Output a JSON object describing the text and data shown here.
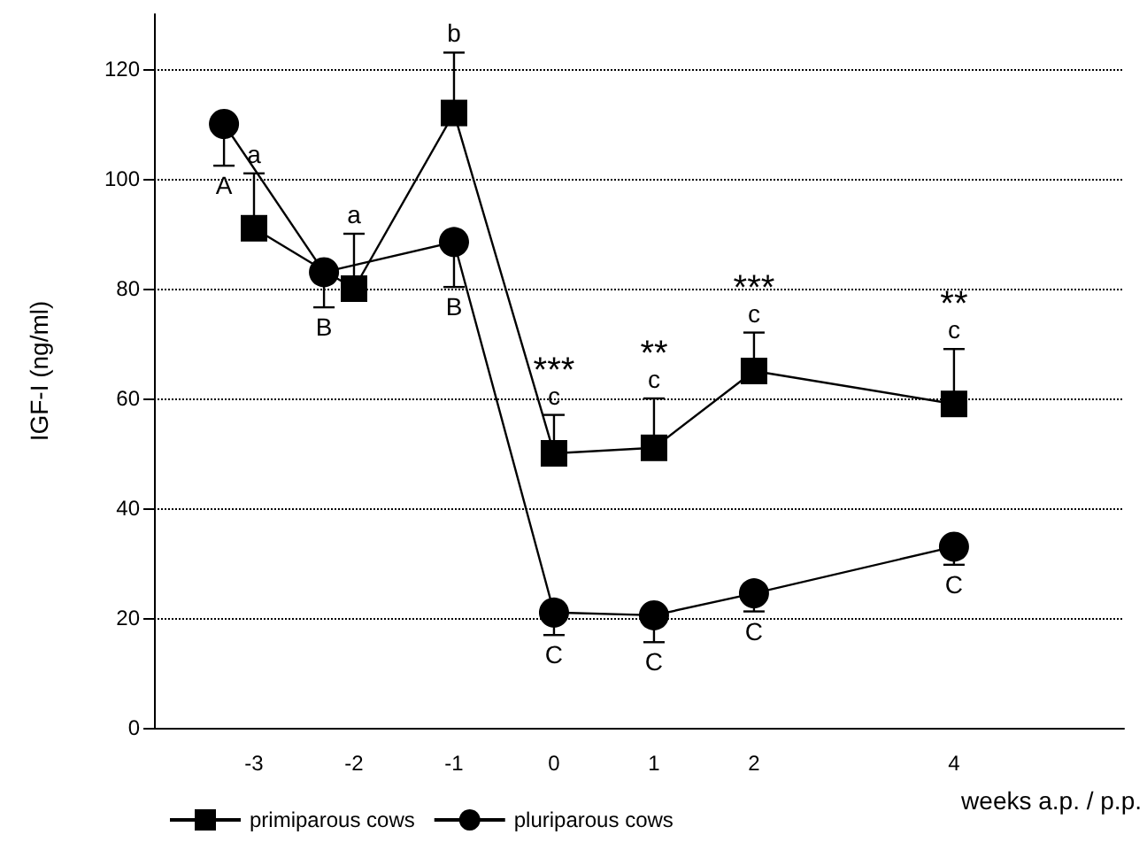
{
  "chart_data": {
    "type": "line",
    "xlabel": "weeks a.p. / p.p.",
    "ylabel": "IGF-I (ng/ml)",
    "xlim": [
      -4,
      5.7
    ],
    "xticks": [
      -3,
      -2,
      -1,
      0,
      1,
      2,
      4
    ],
    "ylim": [
      0,
      130
    ],
    "yticks": [
      0,
      20,
      40,
      60,
      80,
      100,
      120
    ],
    "grid": "y",
    "legend": "bottom left",
    "line_style": "solid",
    "series": [
      {
        "name": "primiparous cows",
        "color": "#000000",
        "marker": "square",
        "x": [
          -3,
          -2,
          -1,
          0,
          1,
          2,
          4
        ],
        "values": [
          91,
          80,
          112,
          50,
          51,
          65,
          59
        ],
        "errors": [
          [
            91,
            101
          ],
          [
            80,
            90
          ],
          [
            112,
            123
          ],
          [
            50,
            57
          ],
          [
            51,
            60
          ],
          [
            65,
            72
          ],
          [
            59,
            69
          ]
        ]
      },
      {
        "name": "pluriparous cows",
        "color": "#000000",
        "marker": "circle",
        "x": [
          -3.3,
          -2.3,
          -1,
          0,
          1,
          2,
          4
        ],
        "values": [
          110,
          83,
          88.5,
          21,
          20.5,
          24.5,
          33
        ],
        "errors": [
          [
            102.4,
            110
          ],
          [
            76.6,
            83
          ],
          [
            80.3,
            88.5
          ],
          [
            16.9,
            21
          ],
          [
            15.6,
            20.5
          ],
          [
            21.2,
            24.5
          ],
          [
            29.7,
            33
          ]
        ]
      }
    ],
    "annotations": [
      {
        "text": "A",
        "x": -3.3,
        "y": 110
      },
      {
        "text": "a",
        "x": -3,
        "y": 91
      },
      {
        "text": "B",
        "x": -2.3,
        "y": 83
      },
      {
        "text": "a",
        "x": -2,
        "y": 80
      },
      {
        "text": "b",
        "x": -1,
        "y": 112
      },
      {
        "text": "B",
        "x": -1,
        "y": 88.5
      },
      {
        "text": "c",
        "x": 0,
        "y": 50
      },
      {
        "text": "***",
        "x": 0,
        "y": 50
      },
      {
        "text": "C",
        "x": 0,
        "y": 21
      },
      {
        "text": "c",
        "x": 1,
        "y": 51
      },
      {
        "text": "**",
        "x": 1,
        "y": 51
      },
      {
        "text": "C",
        "x": 1,
        "y": 20.5
      },
      {
        "text": "c",
        "x": 2,
        "y": 65
      },
      {
        "text": "***",
        "x": 2,
        "y": 65
      },
      {
        "text": "C",
        "x": 2,
        "y": 24.5
      },
      {
        "text": "c",
        "x": 4,
        "y": 59
      },
      {
        "text": "**",
        "x": 4,
        "y": 59
      },
      {
        "text": "C",
        "x": 4,
        "y": 33
      }
    ]
  }
}
